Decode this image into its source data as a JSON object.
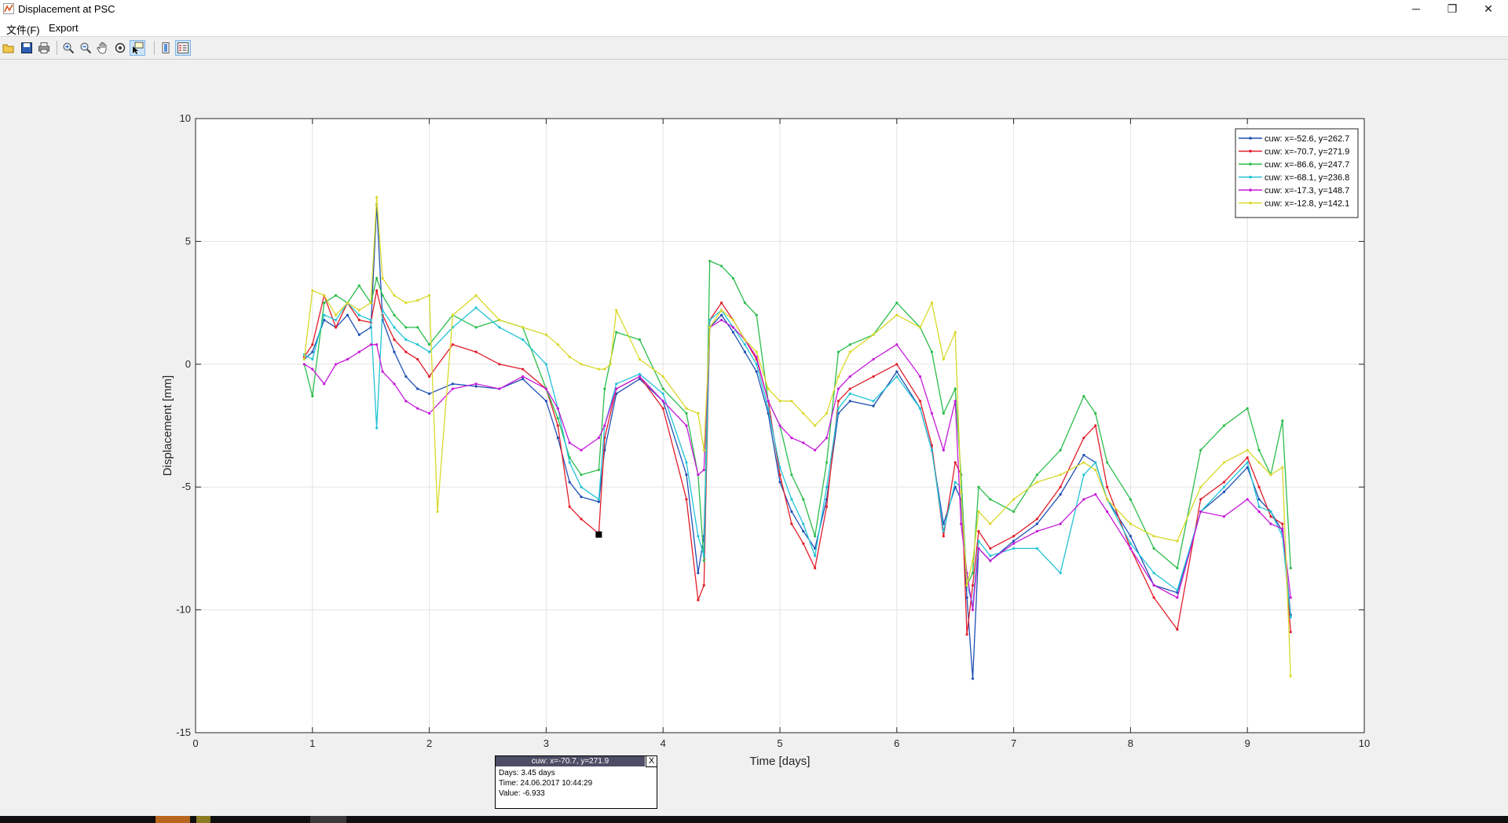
{
  "window": {
    "title": "Displacement at PSC",
    "minimize": "─",
    "restore": "❐",
    "close": "✕"
  },
  "menu": {
    "file": "文件(F)",
    "export": "Export"
  },
  "toolbar": [
    {
      "name": "open-icon",
      "active": false
    },
    {
      "name": "save-icon",
      "active": false
    },
    {
      "name": "print-icon",
      "active": false
    },
    {
      "name": "zoom-in-icon",
      "active": false
    },
    {
      "name": "zoom-out-icon",
      "active": false
    },
    {
      "name": "pan-icon",
      "active": false
    },
    {
      "name": "rotate-icon",
      "active": false
    },
    {
      "name": "data-cursor-icon",
      "active": true
    },
    {
      "name": "colorbar-icon",
      "active": false
    },
    {
      "name": "legend-icon",
      "active": true
    }
  ],
  "datatip": {
    "title": "cuw: x=-70.7, y=271.9",
    "close": "X",
    "days": "Days: 3.45 days",
    "time": "Time: 24.06.2017 10:44:29",
    "value": "Value: -6.933"
  },
  "chart_data": {
    "type": "line",
    "title": "",
    "xlabel": "Time [days]",
    "ylabel": "Displacement [mm]",
    "xlim": [
      0,
      10
    ],
    "ylim": [
      -15,
      10
    ],
    "xticks": [
      "0",
      "1",
      "2",
      "3",
      "4",
      "5",
      "6",
      "7",
      "8",
      "9",
      "10"
    ],
    "yticks": [
      "10",
      "5",
      "0",
      "-5",
      "-10",
      "-15"
    ],
    "grid": true,
    "legend_position": "top-right",
    "highlight_point": {
      "x": 3.45,
      "y": -6.933
    },
    "series": [
      {
        "name": "cuw: x=-52.6, y=262.7",
        "color": "#1f4fb4",
        "x": [
          0.93,
          1.0,
          1.1,
          1.2,
          1.3,
          1.4,
          1.5,
          1.55,
          1.6,
          1.7,
          1.8,
          1.9,
          2.0,
          2.2,
          2.4,
          2.6,
          2.8,
          3.0,
          3.1,
          3.2,
          3.3,
          3.45,
          3.5,
          3.6,
          3.8,
          4.0,
          4.2,
          4.3,
          4.35,
          4.4,
          4.5,
          4.6,
          4.7,
          4.8,
          4.9,
          5.0,
          5.1,
          5.2,
          5.3,
          5.4,
          5.5,
          5.6,
          5.8,
          6.0,
          6.2,
          6.3,
          6.4,
          6.5,
          6.55,
          6.6,
          6.65,
          6.7,
          6.8,
          7.0,
          7.2,
          7.4,
          7.6,
          7.7,
          7.8,
          8.0,
          8.2,
          8.4,
          8.6,
          8.8,
          9.0,
          9.1,
          9.2,
          9.3,
          9.37
        ],
        "y": [
          0.2,
          0.5,
          1.8,
          1.5,
          2.0,
          1.2,
          1.5,
          6.5,
          1.8,
          0.5,
          -0.5,
          -1.0,
          -1.2,
          -0.8,
          -0.9,
          -1.0,
          -0.6,
          -1.5,
          -3.0,
          -4.8,
          -5.4,
          -5.6,
          -3.5,
          -1.2,
          -0.6,
          -1.5,
          -4.5,
          -8.5,
          -7.0,
          1.5,
          2.0,
          1.3,
          0.5,
          -0.3,
          -2.0,
          -4.8,
          -6.0,
          -6.8,
          -7.5,
          -5.5,
          -2.0,
          -1.5,
          -1.7,
          -0.3,
          -1.8,
          -3.5,
          -6.5,
          -5.0,
          -5.5,
          -9.5,
          -12.8,
          -7.5,
          -8.0,
          -7.2,
          -6.5,
          -5.3,
          -3.7,
          -4.0,
          -5.5,
          -7.0,
          -9.0,
          -9.3,
          -6.0,
          -5.2,
          -4.2,
          -5.5,
          -6.0,
          -6.8,
          -10.2
        ]
      },
      {
        "name": "cuw: x=-70.7, y=271.9",
        "color": "#e11d2a",
        "x": [
          0.93,
          1.0,
          1.1,
          1.2,
          1.3,
          1.4,
          1.5,
          1.55,
          1.6,
          1.7,
          1.8,
          1.9,
          2.0,
          2.2,
          2.4,
          2.6,
          2.8,
          3.0,
          3.1,
          3.2,
          3.3,
          3.45,
          3.5,
          3.6,
          3.8,
          4.0,
          4.2,
          4.3,
          4.35,
          4.4,
          4.5,
          4.6,
          4.7,
          4.8,
          4.9,
          5.0,
          5.1,
          5.2,
          5.3,
          5.4,
          5.5,
          5.6,
          5.8,
          6.0,
          6.2,
          6.3,
          6.4,
          6.5,
          6.55,
          6.6,
          6.65,
          6.7,
          6.8,
          7.0,
          7.2,
          7.4,
          7.6,
          7.7,
          7.8,
          8.0,
          8.2,
          8.4,
          8.6,
          8.8,
          9.0,
          9.1,
          9.2,
          9.3,
          9.37
        ],
        "y": [
          0.3,
          0.8,
          2.8,
          1.5,
          2.5,
          1.8,
          1.7,
          3.0,
          2.0,
          1.0,
          0.5,
          0.2,
          -0.5,
          0.8,
          0.5,
          0.0,
          -0.2,
          -1.0,
          -2.5,
          -5.8,
          -6.3,
          -6.9,
          -3.0,
          -1.0,
          -0.5,
          -1.8,
          -5.5,
          -9.6,
          -9.0,
          1.8,
          2.5,
          1.8,
          1.0,
          0.2,
          -1.5,
          -4.5,
          -6.5,
          -7.3,
          -8.3,
          -5.8,
          -1.5,
          -1.0,
          -0.5,
          0.0,
          -1.5,
          -3.3,
          -7.0,
          -4.0,
          -4.5,
          -11.0,
          -9.0,
          -6.8,
          -7.5,
          -7.0,
          -6.3,
          -5.0,
          -3.0,
          -2.5,
          -5.0,
          -7.5,
          -9.5,
          -10.8,
          -5.5,
          -4.8,
          -3.8,
          -5.0,
          -6.2,
          -6.5,
          -10.9
        ]
      },
      {
        "name": "cuw: x=-86.6, y=247.7",
        "color": "#2bbd4b",
        "x": [
          0.93,
          1.0,
          1.1,
          1.2,
          1.3,
          1.4,
          1.5,
          1.55,
          1.6,
          1.7,
          1.8,
          1.9,
          2.0,
          2.2,
          2.4,
          2.6,
          2.8,
          3.0,
          3.1,
          3.2,
          3.3,
          3.45,
          3.5,
          3.6,
          3.8,
          4.0,
          4.2,
          4.3,
          4.35,
          4.4,
          4.5,
          4.6,
          4.7,
          4.8,
          4.9,
          5.0,
          5.1,
          5.2,
          5.3,
          5.4,
          5.5,
          5.6,
          5.8,
          6.0,
          6.2,
          6.3,
          6.4,
          6.5,
          6.55,
          6.6,
          6.65,
          6.7,
          6.8,
          7.0,
          7.2,
          7.4,
          7.6,
          7.7,
          7.8,
          8.0,
          8.2,
          8.4,
          8.6,
          8.8,
          9.0,
          9.1,
          9.2,
          9.3,
          9.37
        ],
        "y": [
          0.0,
          -1.3,
          2.5,
          2.8,
          2.5,
          3.2,
          2.5,
          3.5,
          2.8,
          2.0,
          1.5,
          1.5,
          0.8,
          2.0,
          1.5,
          1.8,
          1.5,
          -1.0,
          -2.2,
          -3.8,
          -4.5,
          -4.3,
          -1.0,
          1.3,
          1.0,
          -1.0,
          -2.0,
          -4.5,
          -8.0,
          4.2,
          4.0,
          3.5,
          2.5,
          2.0,
          -1.5,
          -2.5,
          -4.5,
          -5.5,
          -7.0,
          -4.0,
          0.5,
          0.8,
          1.2,
          2.5,
          1.5,
          0.5,
          -2.0,
          -1.0,
          -4.5,
          -9.0,
          -8.5,
          -5.0,
          -5.5,
          -6.0,
          -4.5,
          -3.5,
          -1.3,
          -2.0,
          -4.0,
          -5.5,
          -7.5,
          -8.3,
          -3.5,
          -2.5,
          -1.8,
          -3.5,
          -4.5,
          -2.3,
          -8.3
        ]
      },
      {
        "name": "cuw: x=-68.1, y=236.8",
        "color": "#22c3d6",
        "x": [
          0.93,
          1.0,
          1.1,
          1.2,
          1.3,
          1.4,
          1.5,
          1.55,
          1.6,
          1.7,
          1.8,
          1.9,
          2.0,
          2.2,
          2.4,
          2.6,
          2.8,
          3.0,
          3.1,
          3.2,
          3.3,
          3.45,
          3.5,
          3.6,
          3.8,
          4.0,
          4.2,
          4.3,
          4.35,
          4.4,
          4.5,
          4.6,
          4.7,
          4.8,
          4.9,
          5.0,
          5.1,
          5.2,
          5.3,
          5.4,
          5.5,
          5.6,
          5.8,
          6.0,
          6.2,
          6.3,
          6.4,
          6.5,
          6.55,
          6.6,
          6.65,
          6.7,
          6.8,
          7.0,
          7.2,
          7.4,
          7.6,
          7.7,
          7.8,
          8.0,
          8.2,
          8.4,
          8.6,
          8.8,
          9.0,
          9.1,
          9.2,
          9.3,
          9.37
        ],
        "y": [
          0.4,
          0.2,
          2.0,
          1.8,
          2.5,
          2.0,
          1.8,
          -2.6,
          2.2,
          1.5,
          1.0,
          0.8,
          0.5,
          1.5,
          2.3,
          1.5,
          1.0,
          0.0,
          -1.8,
          -4.0,
          -5.0,
          -5.5,
          -2.5,
          -0.8,
          -0.4,
          -1.2,
          -4.0,
          -7.0,
          -7.8,
          1.8,
          2.2,
          1.5,
          0.8,
          0.0,
          -1.8,
          -4.2,
          -5.5,
          -6.5,
          -7.8,
          -5.0,
          -1.8,
          -1.2,
          -1.5,
          -0.5,
          -1.8,
          -3.5,
          -6.8,
          -4.8,
          -5.0,
          -9.0,
          -9.8,
          -7.2,
          -7.8,
          -7.5,
          -7.5,
          -8.5,
          -4.5,
          -4.0,
          -5.5,
          -7.3,
          -8.5,
          -9.2,
          -6.0,
          -5.0,
          -4.0,
          -5.8,
          -6.0,
          -7.0,
          -10.3
        ]
      },
      {
        "name": "cuw: x=-17.3, y=148.7",
        "color": "#c61ad9",
        "x": [
          0.93,
          1.0,
          1.1,
          1.2,
          1.3,
          1.4,
          1.5,
          1.55,
          1.6,
          1.7,
          1.8,
          1.9,
          2.0,
          2.2,
          2.4,
          2.6,
          2.8,
          3.0,
          3.1,
          3.2,
          3.3,
          3.45,
          3.5,
          3.6,
          3.8,
          4.0,
          4.2,
          4.3,
          4.35,
          4.4,
          4.5,
          4.6,
          4.7,
          4.8,
          4.9,
          5.0,
          5.1,
          5.2,
          5.3,
          5.4,
          5.5,
          5.6,
          5.8,
          6.0,
          6.2,
          6.3,
          6.4,
          6.5,
          6.55,
          6.6,
          6.65,
          6.7,
          6.8,
          7.0,
          7.2,
          7.4,
          7.6,
          7.7,
          7.8,
          8.0,
          8.2,
          8.4,
          8.6,
          8.8,
          9.0,
          9.1,
          9.2,
          9.3,
          9.37
        ],
        "y": [
          0.0,
          -0.2,
          -0.8,
          0.0,
          0.2,
          0.5,
          0.8,
          0.8,
          -0.3,
          -0.8,
          -1.5,
          -1.8,
          -2.0,
          -1.0,
          -0.8,
          -1.0,
          -0.5,
          -1.0,
          -1.8,
          -3.2,
          -3.5,
          -3.0,
          -2.5,
          -1.0,
          -0.5,
          -1.5,
          -2.5,
          -4.5,
          -4.3,
          1.5,
          1.8,
          1.5,
          1.0,
          0.3,
          -1.5,
          -2.5,
          -3.0,
          -3.2,
          -3.5,
          -3.0,
          -1.0,
          -0.5,
          0.2,
          0.8,
          -0.5,
          -2.0,
          -3.5,
          -1.5,
          -6.5,
          -8.5,
          -10.0,
          -7.5,
          -8.0,
          -7.3,
          -6.8,
          -6.5,
          -5.5,
          -5.3,
          -6.0,
          -7.5,
          -9.0,
          -9.5,
          -6.0,
          -6.2,
          -5.5,
          -6.0,
          -6.5,
          -6.7,
          -9.5
        ]
      },
      {
        "name": "cuw: x=-12.8, y=142.1",
        "color": "#d9d92b",
        "x": [
          0.93,
          1.0,
          1.1,
          1.2,
          1.3,
          1.4,
          1.5,
          1.55,
          1.6,
          1.7,
          1.8,
          1.9,
          2.0,
          2.07,
          2.2,
          2.4,
          2.6,
          2.8,
          3.0,
          3.1,
          3.2,
          3.3,
          3.45,
          3.5,
          3.55,
          3.6,
          3.8,
          4.0,
          4.2,
          4.3,
          4.35,
          4.4,
          4.5,
          4.6,
          4.7,
          4.8,
          4.9,
          5.0,
          5.1,
          5.2,
          5.3,
          5.4,
          5.5,
          5.6,
          5.8,
          6.0,
          6.2,
          6.3,
          6.4,
          6.5,
          6.55,
          6.6,
          6.65,
          6.7,
          6.8,
          7.0,
          7.2,
          7.4,
          7.6,
          7.7,
          7.8,
          8.0,
          8.2,
          8.4,
          8.6,
          8.8,
          9.0,
          9.1,
          9.2,
          9.3,
          9.37
        ],
        "y": [
          0.2,
          3.0,
          2.8,
          2.0,
          2.5,
          2.2,
          2.5,
          6.8,
          3.5,
          2.8,
          2.5,
          2.6,
          2.8,
          -6.0,
          2.0,
          2.8,
          1.8,
          1.5,
          1.2,
          0.8,
          0.3,
          0.0,
          -0.2,
          -0.2,
          0.0,
          2.2,
          0.2,
          -0.5,
          -1.8,
          -2.0,
          -3.5,
          1.5,
          2.2,
          1.8,
          1.0,
          0.5,
          -1.0,
          -1.5,
          -1.5,
          -2.0,
          -2.5,
          -2.0,
          -0.5,
          0.5,
          1.2,
          2.0,
          1.5,
          2.5,
          0.2,
          1.3,
          -5.2,
          -9.0,
          -8.0,
          -6.0,
          -6.5,
          -5.5,
          -4.8,
          -4.5,
          -4.0,
          -4.3,
          -5.5,
          -6.5,
          -7.0,
          -7.2,
          -5.0,
          -4.0,
          -3.5,
          -4.0,
          -4.5,
          -4.2,
          -12.7
        ]
      }
    ]
  }
}
